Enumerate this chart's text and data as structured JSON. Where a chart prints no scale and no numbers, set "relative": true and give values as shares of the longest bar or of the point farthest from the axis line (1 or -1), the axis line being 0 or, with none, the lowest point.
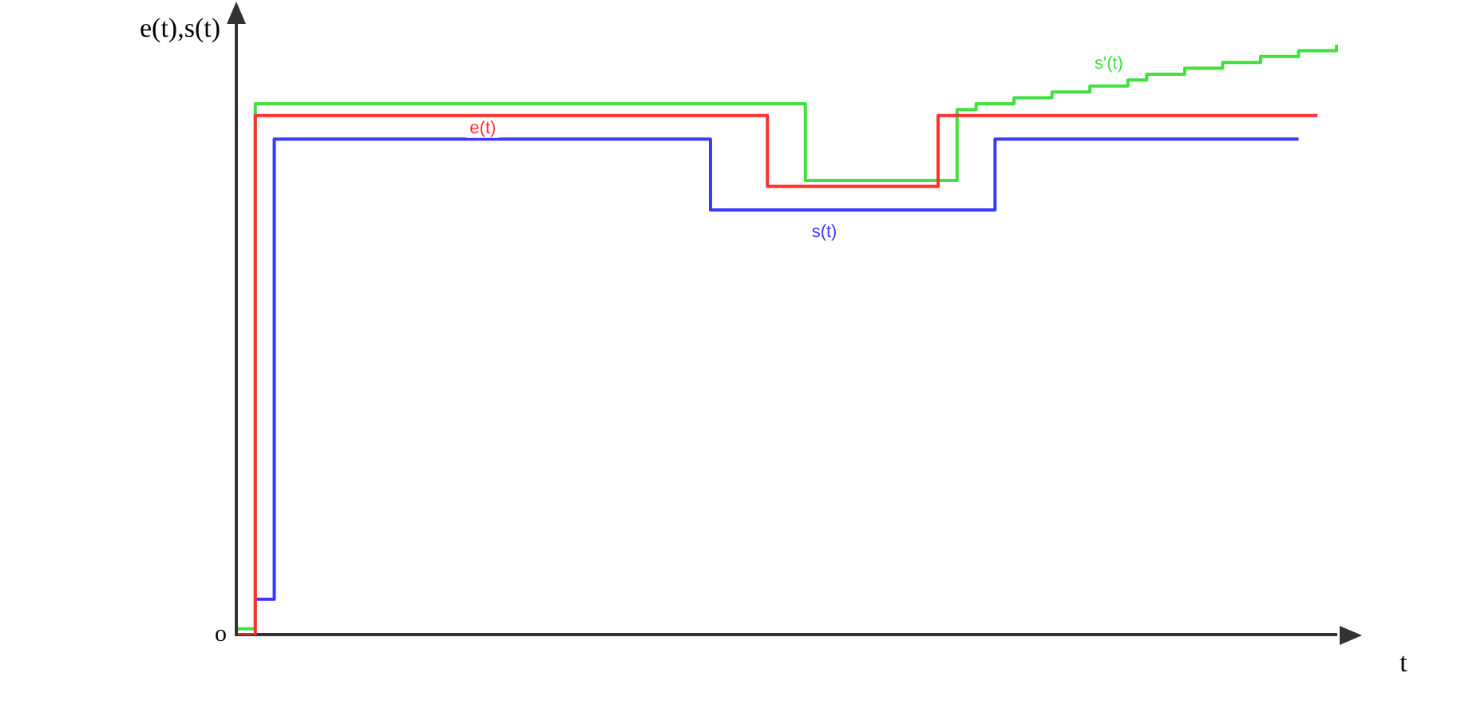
{
  "chart_data": {
    "type": "step",
    "relative": true,
    "ylabel": "e(t),s(t)",
    "xlabel": "t",
    "annotations": [
      "o"
    ],
    "legend": false,
    "grid": false,
    "categories": [
      null,
      null,
      null,
      null,
      null,
      null,
      null,
      null,
      null,
      null,
      null,
      null,
      null,
      null,
      null,
      null,
      null,
      null,
      null,
      null,
      null,
      null,
      null,
      null,
      null,
      null,
      null,
      null,
      null,
      null,
      null,
      null,
      null,
      null,
      null,
      null,
      null,
      null,
      null,
      null,
      null,
      null,
      null,
      null,
      null,
      null,
      null,
      null,
      null,
      null,
      null,
      null,
      null,
      null,
      null,
      null,
      null,
      null,
      null
    ],
    "series": [
      {
        "name": "e(t)",
        "color": "#ff3030",
        "values": [
          0,
          0.88,
          0.88,
          0.88,
          0.88,
          0.88,
          0.88,
          0.88,
          0.88,
          0.88,
          0.88,
          0.88,
          0.88,
          0.88,
          0.88,
          0.88,
          0.88,
          0.88,
          0.88,
          0.88,
          0.88,
          0.88,
          0.88,
          0.88,
          0.88,
          0.88,
          0.88,
          0.88,
          0.76,
          0.76,
          0.76,
          0.76,
          0.76,
          0.76,
          0.76,
          0.76,
          0.76,
          0.88,
          0.88,
          0.88,
          0.88,
          0.88,
          0.88,
          0.88,
          0.88,
          0.88,
          0.88,
          0.88,
          0.88,
          0.88,
          0.88,
          0.88,
          0.88,
          0.88,
          0.88,
          0.88,
          0.88,
          0.88,
          null
        ]
      },
      {
        "name": "s(t)",
        "color": "#3a3aff",
        "values": [
          null,
          0.06,
          0.84,
          0.84,
          0.84,
          0.84,
          0.84,
          0.84,
          0.84,
          0.84,
          0.84,
          0.84,
          0.84,
          0.84,
          0.84,
          0.84,
          0.84,
          0.84,
          0.84,
          0.84,
          0.84,
          0.84,
          0.84,
          0.84,
          0.84,
          0.72,
          0.72,
          0.72,
          0.72,
          0.72,
          0.72,
          0.72,
          0.72,
          0.72,
          0.72,
          0.72,
          0.72,
          0.72,
          0.72,
          0.72,
          0.84,
          0.84,
          0.84,
          0.84,
          0.84,
          0.84,
          0.84,
          0.84,
          0.84,
          0.84,
          0.84,
          0.84,
          0.84,
          0.84,
          0.84,
          0.84,
          0.84,
          null,
          null
        ]
      },
      {
        "name": "s'(t)",
        "color": "#40e040",
        "values": [
          0.01,
          0.9,
          0.9,
          0.9,
          0.9,
          0.9,
          0.9,
          0.9,
          0.9,
          0.9,
          0.9,
          0.9,
          0.9,
          0.9,
          0.9,
          0.9,
          0.9,
          0.9,
          0.9,
          0.9,
          0.9,
          0.9,
          0.9,
          0.9,
          0.9,
          0.9,
          0.9,
          0.9,
          0.9,
          0.9,
          0.77,
          0.77,
          0.77,
          0.77,
          0.77,
          0.77,
          0.77,
          0.77,
          0.89,
          0.9,
          0.9,
          0.91,
          0.91,
          0.92,
          0.92,
          0.93,
          0.93,
          0.94,
          0.95,
          0.95,
          0.96,
          0.96,
          0.97,
          0.97,
          0.98,
          0.98,
          0.99,
          0.99,
          1.0
        ]
      }
    ]
  }
}
